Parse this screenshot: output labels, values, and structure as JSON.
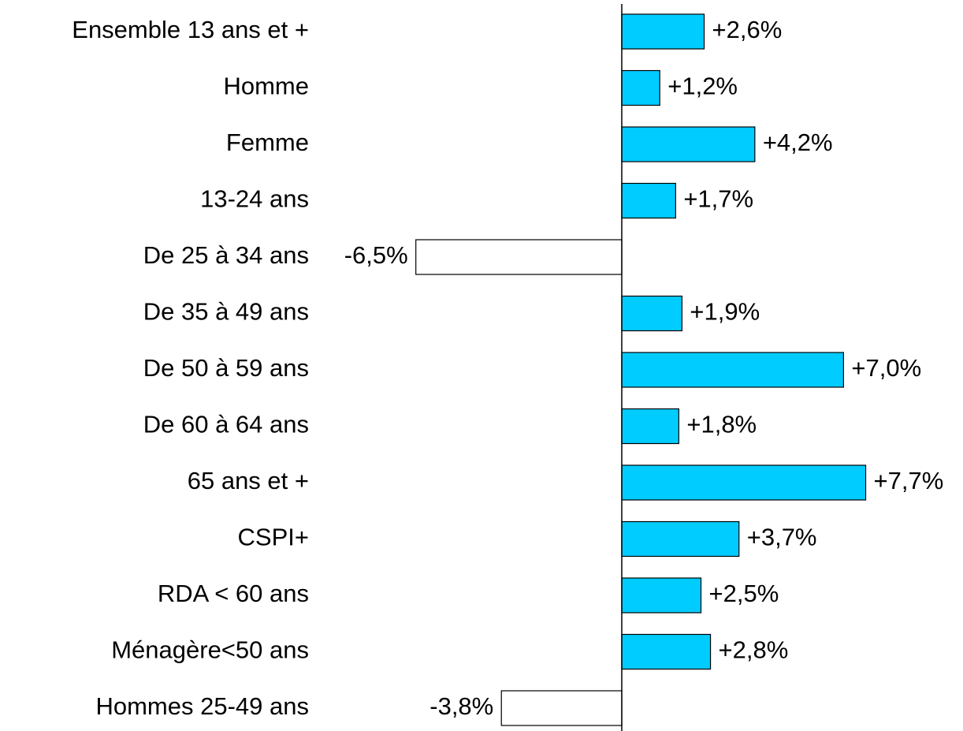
{
  "chart_data": {
    "type": "barh",
    "categories": [
      "Ensemble 13 ans et +",
      "Homme",
      "Femme",
      "13-24 ans",
      "De 25 à 34 ans",
      "De 35 à 49 ans",
      "De 50 à 59 ans",
      "De 60 à 64 ans",
      "65 ans et +",
      "CSPI+",
      "RDA < 60 ans",
      "Ménagère<50 ans",
      "Hommes 25-49 ans"
    ],
    "values": [
      2.6,
      1.2,
      4.2,
      1.7,
      -6.5,
      1.9,
      7.0,
      1.8,
      7.7,
      3.7,
      2.5,
      2.8,
      -3.8
    ],
    "value_labels": [
      "+2,6%",
      "+1,2%",
      "+4,2%",
      "+1,7%",
      "-6,5%",
      "+1,9%",
      "+7,0%",
      "+1,8%",
      "+7,7%",
      "+3,7%",
      "+2,5%",
      "+2,8%",
      "-3,8%"
    ],
    "color": "#00ccff",
    "negative_color": "#ffffff"
  }
}
